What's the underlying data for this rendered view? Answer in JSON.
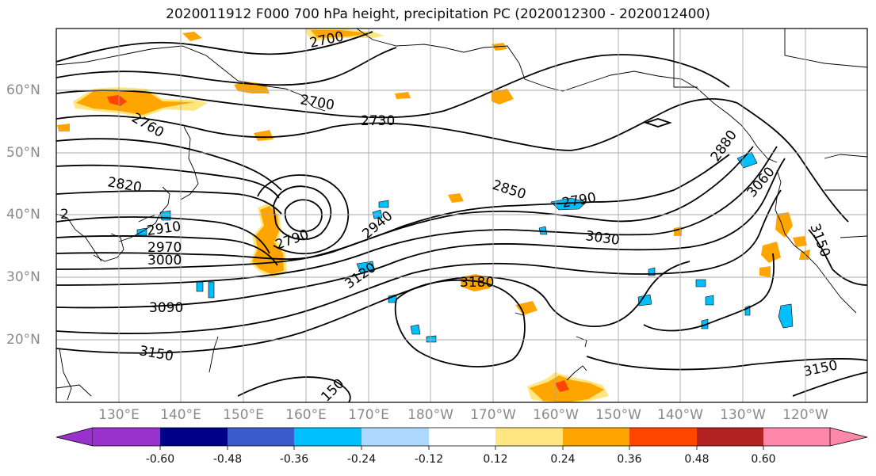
{
  "title": "2020011912 F000 700 hPa height, precipitation PC (2020012300 - 2020012400)",
  "lat_labels": [
    "60°N",
    "50°N",
    "40°N",
    "30°N",
    "20°N"
  ],
  "lon_labels": [
    "130°E",
    "140°E",
    "150°E",
    "160°E",
    "170°E",
    "180°W",
    "170°W",
    "160°W",
    "150°W",
    "140°W",
    "130°W",
    "120°W"
  ],
  "contour_labels": [
    "2700",
    "2700",
    "2730",
    "2760",
    "2820",
    "2850",
    "2790",
    "2880",
    "3060",
    "2790",
    "2940",
    "3030",
    "2910",
    "2970",
    "3000",
    "3120",
    "3180",
    "3150",
    "3090",
    "3150",
    "3150",
    "150",
    "2"
  ],
  "colorbar": {
    "tick_labels": [
      "-0.60",
      "-0.48",
      "-0.36",
      "-0.24",
      "-0.12",
      "0.12",
      "0.24",
      "0.36",
      "0.48",
      "0.60"
    ],
    "colors": [
      "#9932cc",
      "#00008b",
      "#3a5bcc",
      "#00bfff",
      "#add8ff",
      "#ffffff",
      "#ffe680",
      "#ffa500",
      "#ff4500",
      "#b22222",
      "#ff88aa",
      "#ff88aa"
    ]
  },
  "colors": {
    "positive_light": "#ffe680",
    "positive_mid": "#ffa500",
    "positive_strong": "#ff4500",
    "negative_light": "#add8ff",
    "negative_mid": "#00bfff",
    "grid": "#aaaaaa"
  }
}
